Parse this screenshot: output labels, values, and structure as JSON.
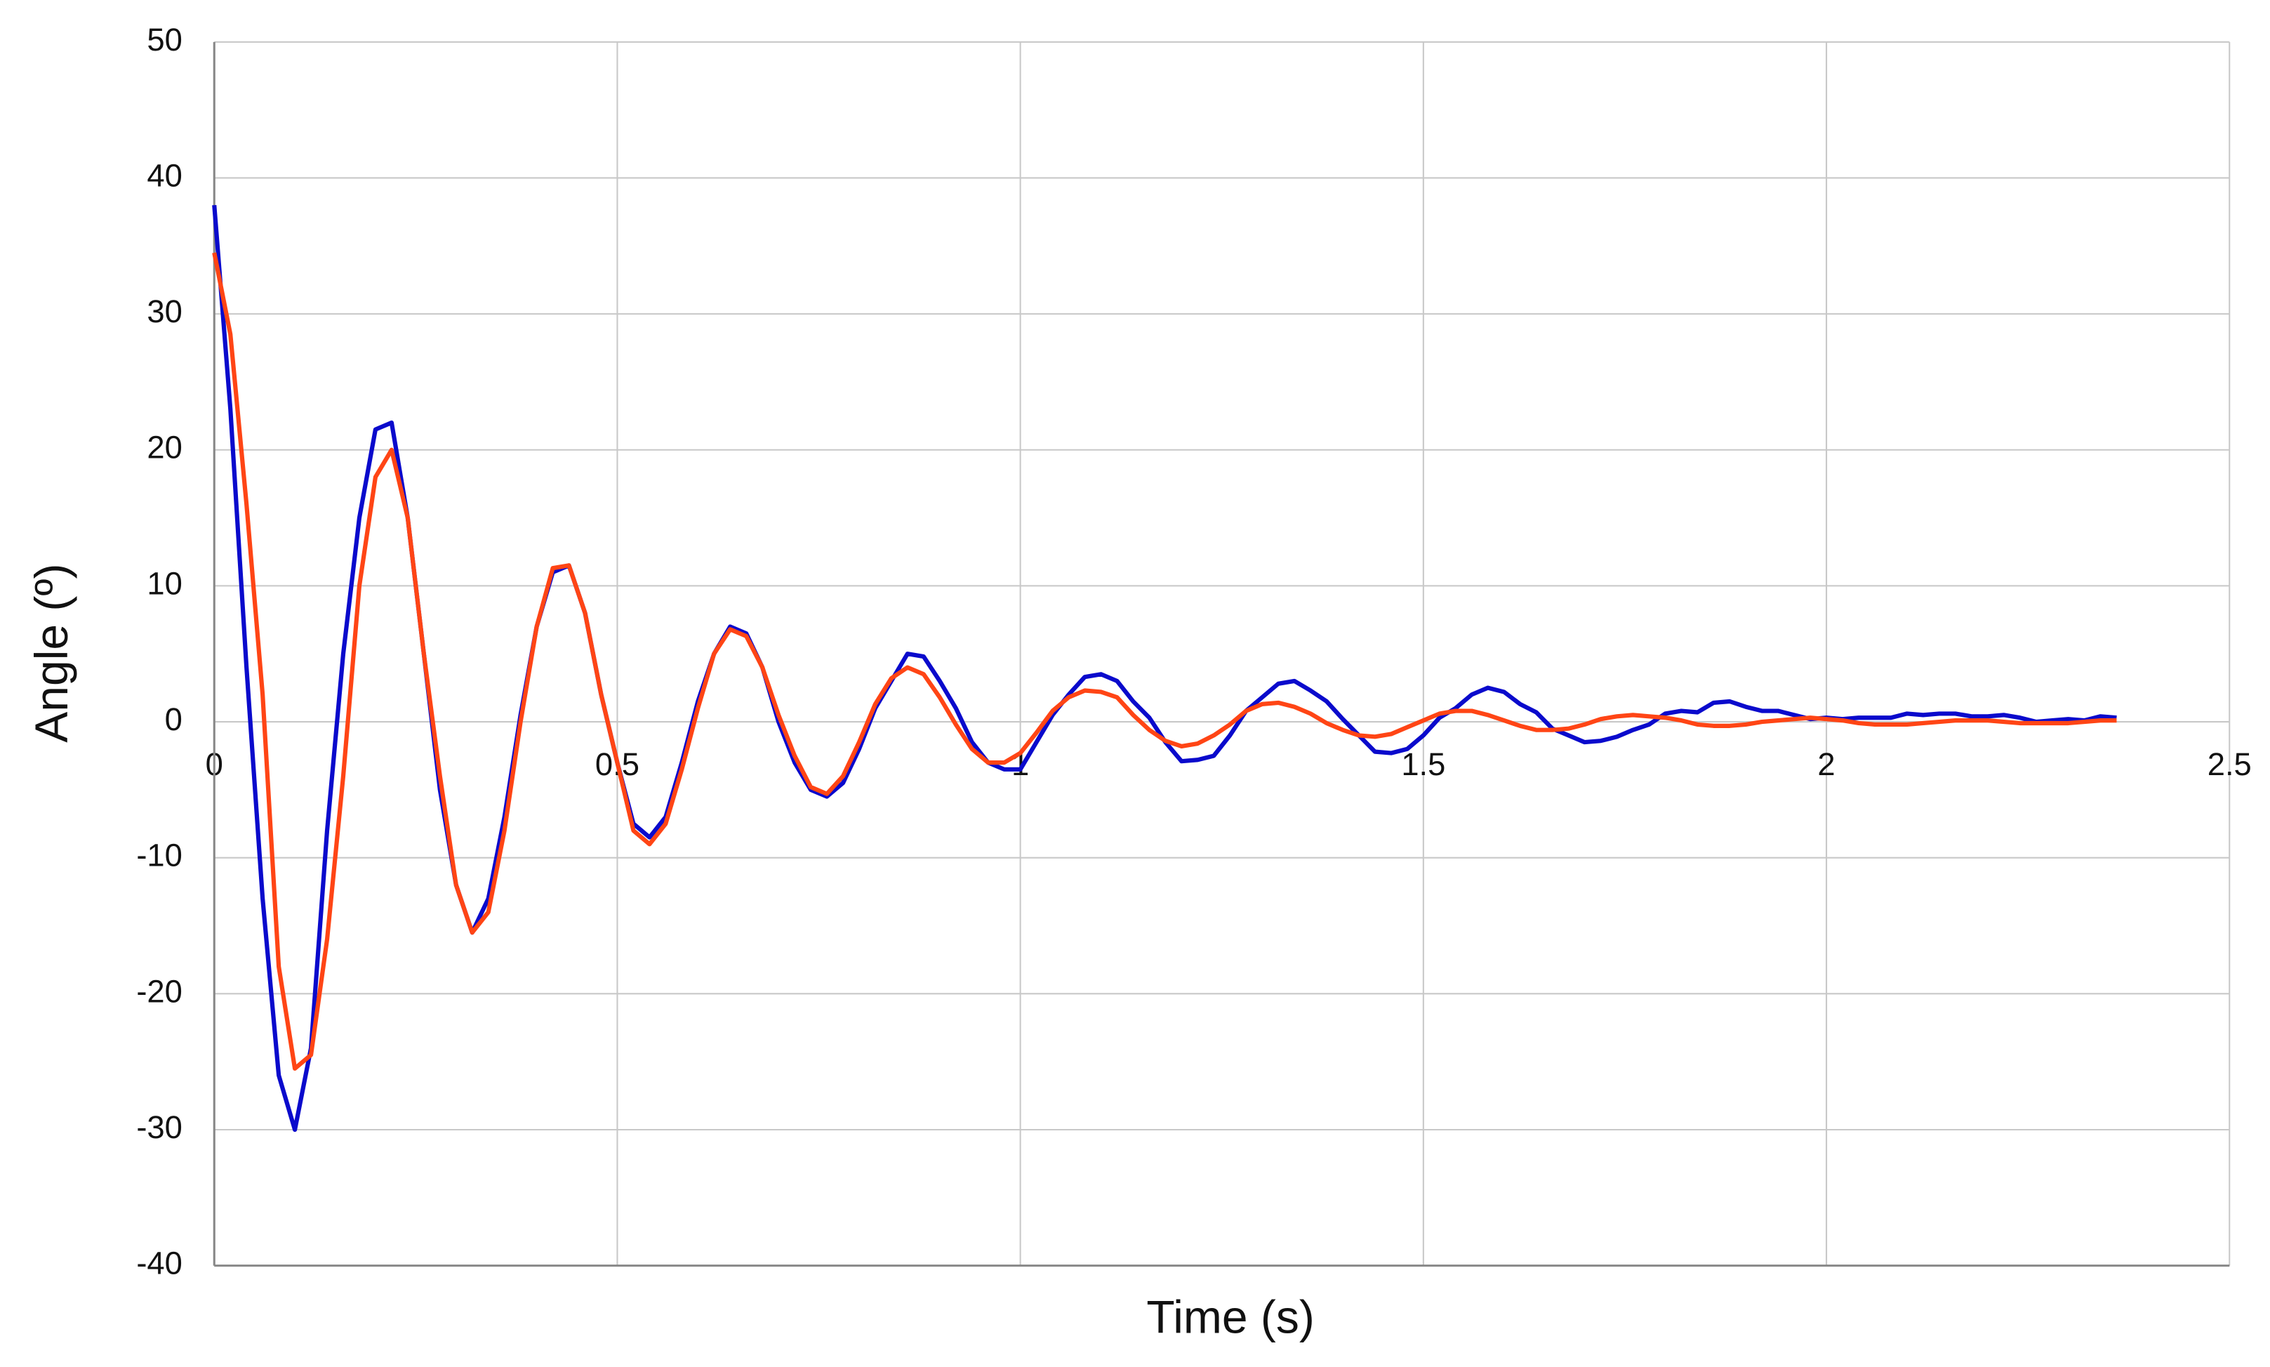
{
  "chart_data": {
    "type": "line",
    "xlabel": "Time (s)",
    "ylabel": "Angle (º)",
    "x": [
      0,
      0.02,
      0.04,
      0.06,
      0.08,
      0.1,
      0.12,
      0.14,
      0.16,
      0.18,
      0.2,
      0.22,
      0.24,
      0.26,
      0.28,
      0.3,
      0.32,
      0.34,
      0.36,
      0.38,
      0.4,
      0.42,
      0.44,
      0.46,
      0.48,
      0.5,
      0.52,
      0.54,
      0.56,
      0.58,
      0.6,
      0.62,
      0.64,
      0.66,
      0.68,
      0.7,
      0.72,
      0.74,
      0.76,
      0.78,
      0.8,
      0.82,
      0.84,
      0.86,
      0.88,
      0.9,
      0.92,
      0.94,
      0.96,
      0.98,
      1,
      1.02,
      1.04,
      1.06,
      1.08,
      1.1,
      1.12,
      1.14,
      1.16,
      1.18,
      1.2,
      1.22,
      1.24,
      1.26,
      1.28,
      1.3,
      1.32,
      1.34,
      1.36,
      1.38,
      1.4,
      1.42,
      1.44,
      1.46,
      1.48,
      1.5,
      1.52,
      1.54,
      1.56,
      1.58,
      1.6,
      1.62,
      1.64,
      1.66,
      1.68,
      1.7,
      1.72,
      1.74,
      1.76,
      1.78,
      1.8,
      1.82,
      1.84,
      1.86,
      1.88,
      1.9,
      1.92,
      1.94,
      1.96,
      1.98,
      2,
      2.02,
      2.04,
      2.06,
      2.08,
      2.1,
      2.12,
      2.14,
      2.16,
      2.18,
      2.2,
      2.22,
      2.24,
      2.26,
      2.28,
      2.3,
      2.32,
      2.34,
      2.36
    ],
    "series": [
      {
        "color": "#0a0acc",
        "values": [
          38,
          23,
          4,
          -13,
          -26,
          -30,
          -24,
          -8,
          5,
          15,
          21.5,
          22,
          15,
          5,
          -5,
          -12,
          -15.5,
          -13,
          -7,
          0.5,
          7,
          11,
          11.5,
          8,
          2,
          -3,
          -7.5,
          -8.5,
          -7,
          -3,
          1.5,
          5,
          7,
          6.5,
          4,
          0,
          -3,
          -5,
          -5.5,
          -4.5,
          -2,
          1,
          3,
          5,
          4.8,
          3,
          1,
          -1.5,
          -3,
          -3.5,
          -3.5,
          -1.5,
          0.5,
          2,
          3.3,
          3.5,
          3,
          1.5,
          0.3,
          -1.5,
          -2.9,
          -2.8,
          -2.5,
          -1,
          0.8,
          1.8,
          2.8,
          3,
          2.3,
          1.5,
          0.2,
          -1,
          -2.2,
          -2.3,
          -2,
          -1,
          0.3,
          1,
          2,
          2.5,
          2.2,
          1.3,
          0.7,
          -0.5,
          -1,
          -1.5,
          -1.4,
          -1.1,
          -0.6,
          -0.2,
          0.6,
          0.8,
          0.7,
          1.4,
          1.5,
          1.1,
          0.8,
          0.8,
          0.5,
          0.2,
          0.3,
          0.2,
          0.3,
          0.3,
          0.3,
          0.6,
          0.5,
          0.6,
          0.6,
          0.4,
          0.4,
          0.5,
          0.3,
          0,
          0.1,
          0.2,
          0.1,
          0.4,
          0.3
        ]
      },
      {
        "color": "#ff4515",
        "values": [
          34.5,
          28.5,
          16,
          2,
          -18,
          -25.5,
          -24.5,
          -16,
          -4,
          10,
          18,
          20,
          15,
          5,
          -4,
          -12,
          -15.5,
          -14,
          -8,
          0,
          7,
          11.3,
          11.5,
          8,
          2,
          -3,
          -8,
          -9,
          -7.5,
          -3.5,
          1,
          5,
          6.8,
          6.3,
          4,
          0.5,
          -2.5,
          -4.8,
          -5.3,
          -4,
          -1.5,
          1.3,
          3.2,
          4,
          3.5,
          1.8,
          -0.2,
          -2,
          -3,
          -3,
          -2.3,
          -0.8,
          0.8,
          1.8,
          2.3,
          2.2,
          1.8,
          0.5,
          -0.6,
          -1.4,
          -1.8,
          -1.6,
          -1,
          -0.2,
          0.8,
          1.3,
          1.4,
          1.1,
          0.6,
          -0.1,
          -0.6,
          -1,
          -1.1,
          -0.9,
          -0.4,
          0.1,
          0.6,
          0.8,
          0.8,
          0.5,
          0.1,
          -0.3,
          -0.6,
          -0.6,
          -0.5,
          -0.2,
          0.2,
          0.4,
          0.5,
          0.4,
          0.3,
          0.1,
          -0.2,
          -0.3,
          -0.3,
          -0.2,
          0,
          0.1,
          0.2,
          0.3,
          0.2,
          0.1,
          -0.1,
          -0.2,
          -0.2,
          -0.2,
          -0.1,
          0,
          0.1,
          0.1,
          0.1,
          0,
          -0.1,
          -0.1,
          -0.1,
          -0.1,
          0,
          0.1,
          0.1
        ]
      }
    ],
    "xlim": [
      0,
      2.5
    ],
    "xticks": [
      0,
      0.5,
      1,
      1.5,
      2,
      2.5
    ],
    "ylim": [
      -40,
      50
    ],
    "yticks": [
      -40,
      -30,
      -20,
      -10,
      0,
      10,
      20,
      30,
      40,
      50
    ],
    "grid": true
  }
}
